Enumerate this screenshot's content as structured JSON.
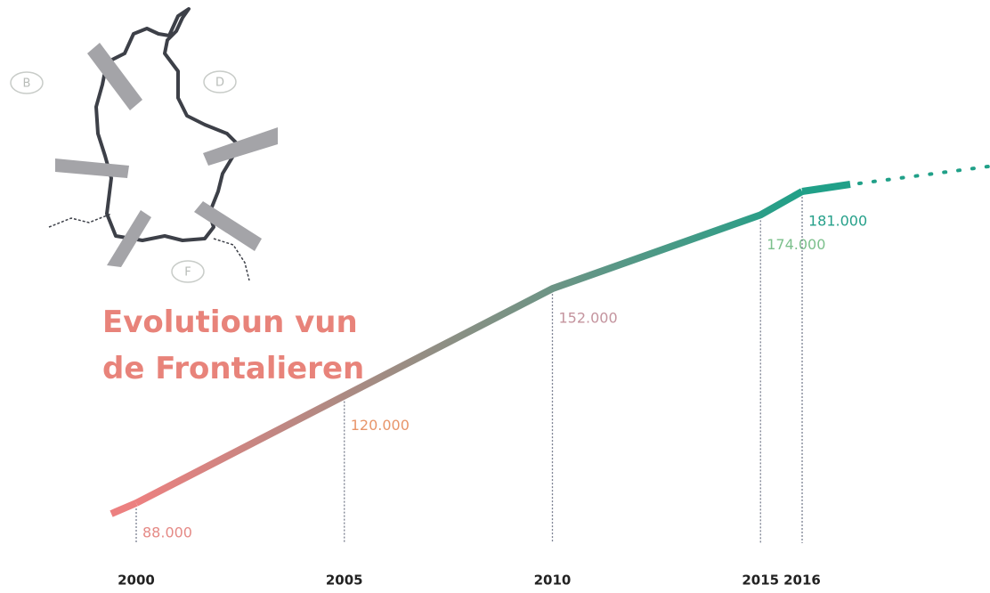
{
  "chart_data": {
    "type": "line",
    "title": "Evolutioun vun de Frontalieren",
    "x": [
      2000,
      2005,
      2010,
      2015,
      2016
    ],
    "values": [
      88000,
      120000,
      152000,
      174000,
      181000
    ],
    "value_labels": [
      "88.000",
      "120.000",
      "152.000",
      "174.000",
      "181.000"
    ],
    "value_label_colors": [
      "#e58a86",
      "#e8956a",
      "#c4949e",
      "#7cc08c",
      "#26a08a"
    ],
    "line_colors": [
      "#ec8080",
      "#20a088"
    ],
    "map_labels": [
      "B",
      "D",
      "F"
    ]
  }
}
